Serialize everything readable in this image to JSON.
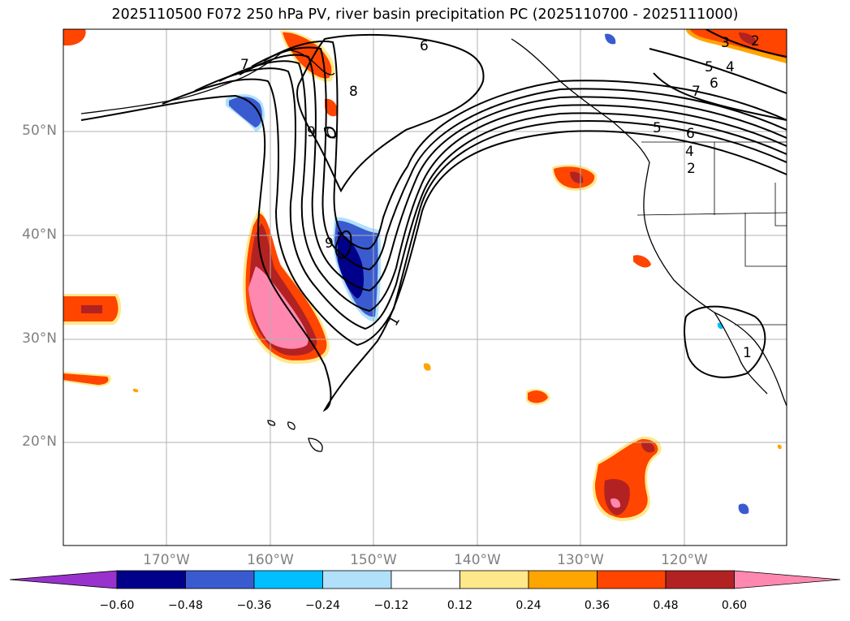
{
  "title": "2025110500 F072 250 hPa PV, river basin precipitation PC (2025110700 - 2025111000)",
  "lat_labels": [
    "50°N",
    "40°N",
    "30°N",
    "20°N"
  ],
  "lon_labels": [
    "170°W",
    "160°W",
    "150°W",
    "140°W",
    "130°W",
    "120°W"
  ],
  "contour_labels": [
    "1",
    "6",
    "7",
    "8",
    "9",
    "9",
    "5",
    "4",
    "6",
    "7",
    "5",
    "6",
    "4",
    "2",
    "3",
    "2",
    "1"
  ],
  "colorbar": {
    "ticks": [
      "−0.60",
      "−0.48",
      "−0.36",
      "−0.24",
      "−0.12",
      "0.12",
      "0.24",
      "0.36",
      "0.48",
      "0.60"
    ],
    "colors": [
      "#9932cc",
      "#00008b",
      "#3a5bd0",
      "#00bfff",
      "#b0e0fa",
      "#ffffff",
      "#ffe88a",
      "#ffa500",
      "#ff4500",
      "#b22222",
      "#ff88b0"
    ]
  },
  "colors": {
    "land_outline": "#000000",
    "grid": "#b0b0b0",
    "axis_label": "#808080"
  }
}
